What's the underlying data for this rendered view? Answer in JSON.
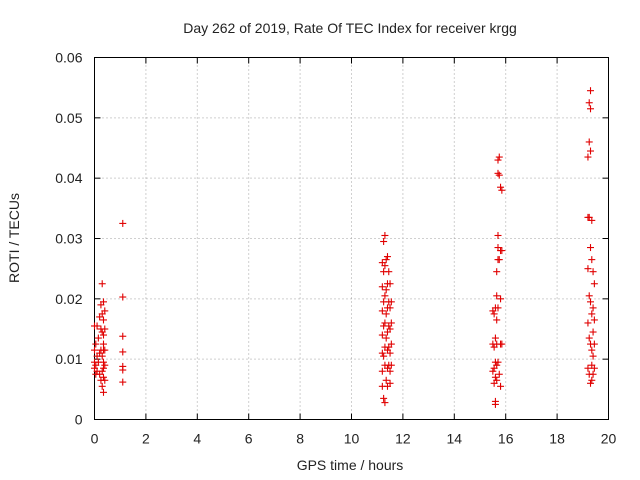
{
  "chart_data": {
    "type": "scatter",
    "title": "Day 262 of 2019, Rate Of TEC Index for receiver krgg",
    "xlabel": "GPS time / hours",
    "ylabel": "ROTI / TECUs",
    "xlim": [
      0,
      20
    ],
    "ylim": [
      0,
      0.06
    ],
    "x_ticks": [
      "0",
      "2",
      "4",
      "6",
      "8",
      "10",
      "12",
      "14",
      "16",
      "18",
      "20"
    ],
    "y_ticks": [
      "0",
      "0.01",
      "0.02",
      "0.03",
      "0.04",
      "0.05",
      "0.06"
    ],
    "grid": true,
    "marker": "+",
    "marker_color": "#e00000",
    "series": [
      {
        "name": "ROTI",
        "x": [
          0.0,
          0.0,
          0.0,
          0.0,
          0.05,
          0.05,
          0.05,
          0.1,
          0.1,
          0.1,
          0.15,
          0.15,
          0.2,
          0.2,
          0.2,
          0.25,
          0.25,
          0.25,
          0.25,
          0.3,
          0.3,
          0.3,
          0.3,
          0.3,
          0.3,
          0.35,
          0.35,
          0.35,
          0.35,
          0.35,
          0.35,
          0.35,
          0.35,
          0.35,
          0.4,
          0.4,
          0.4,
          0.4,
          0.4,
          1.1,
          1.1,
          1.1,
          1.1,
          1.1,
          1.1,
          1.1,
          11.2,
          11.2,
          11.2,
          11.2,
          11.2,
          11.2,
          11.2,
          11.25,
          11.25,
          11.25,
          11.25,
          11.25,
          11.25,
          11.3,
          11.3,
          11.3,
          11.3,
          11.3,
          11.3,
          11.3,
          11.35,
          11.35,
          11.35,
          11.35,
          11.35,
          11.4,
          11.4,
          11.4,
          11.4,
          11.4,
          11.4,
          11.4,
          11.45,
          11.45,
          11.45,
          11.45,
          11.45,
          11.5,
          11.5,
          11.5,
          11.5,
          11.5,
          11.5,
          11.55,
          11.55,
          11.55,
          11.55,
          15.5,
          15.5,
          15.5,
          15.55,
          15.55,
          15.55,
          15.55,
          15.6,
          15.6,
          15.6,
          15.6,
          15.6,
          15.6,
          15.65,
          15.65,
          15.65,
          15.65,
          15.65,
          15.65,
          15.7,
          15.7,
          15.7,
          15.7,
          15.7,
          15.7,
          15.7,
          15.75,
          15.75,
          15.75,
          15.75,
          15.8,
          15.8,
          15.8,
          15.8,
          15.8,
          15.85,
          15.85,
          15.85,
          19.2,
          19.2,
          19.2,
          19.2,
          19.2,
          19.25,
          19.25,
          19.25,
          19.25,
          19.25,
          19.25,
          19.3,
          19.3,
          19.3,
          19.3,
          19.3,
          19.3,
          19.3,
          19.35,
          19.35,
          19.35,
          19.35,
          19.35,
          19.35,
          19.4,
          19.4,
          19.4,
          19.4,
          19.4,
          19.45,
          19.45,
          19.45,
          19.45
        ],
        "y": [
          0.0155,
          0.0115,
          0.0095,
          0.0085,
          0.0125,
          0.009,
          0.0075,
          0.0155,
          0.0105,
          0.008,
          0.0135,
          0.0095,
          0.017,
          0.011,
          0.0075,
          0.019,
          0.015,
          0.0115,
          0.0065,
          0.0225,
          0.0175,
          0.0145,
          0.0105,
          0.008,
          0.0055,
          0.0195,
          0.0165,
          0.014,
          0.0125,
          0.0115,
          0.0095,
          0.0085,
          0.007,
          0.0045,
          0.018,
          0.015,
          0.0115,
          0.009,
          0.0065,
          0.0325,
          0.0203,
          0.0138,
          0.0112,
          0.0088,
          0.0082,
          0.0062,
          0.026,
          0.022,
          0.018,
          0.014,
          0.011,
          0.008,
          0.0055,
          0.0295,
          0.0245,
          0.0195,
          0.0155,
          0.0105,
          0.0035,
          0.0305,
          0.0255,
          0.0205,
          0.016,
          0.012,
          0.009,
          0.0028,
          0.0265,
          0.0215,
          0.0175,
          0.0135,
          0.0065,
          0.027,
          0.0225,
          0.0185,
          0.0145,
          0.0115,
          0.0085,
          0.0055,
          0.0245,
          0.0195,
          0.0155,
          0.012,
          0.009,
          0.0225,
          0.0185,
          0.015,
          0.011,
          0.008,
          0.006,
          0.0195,
          0.016,
          0.0125,
          0.009,
          0.018,
          0.0125,
          0.008,
          0.0175,
          0.012,
          0.0085,
          0.006,
          0.0185,
          0.0135,
          0.0095,
          0.007,
          0.003,
          0.0025,
          0.0245,
          0.0205,
          0.0165,
          0.0125,
          0.009,
          0.0065,
          0.043,
          0.0408,
          0.0305,
          0.0285,
          0.0265,
          0.0185,
          0.0095,
          0.0435,
          0.0405,
          0.0265,
          0.0075,
          0.0385,
          0.028,
          0.02,
          0.0125,
          0.0055,
          0.038,
          0.028,
          0.0125,
          0.0435,
          0.0335,
          0.025,
          0.016,
          0.0085,
          0.0525,
          0.046,
          0.0335,
          0.0205,
          0.0135,
          0.0075,
          0.0545,
          0.0515,
          0.0445,
          0.0285,
          0.0195,
          0.0125,
          0.006,
          0.033,
          0.0265,
          0.0175,
          0.0115,
          0.009,
          0.0065,
          0.0245,
          0.0185,
          0.0145,
          0.0105,
          0.0075,
          0.0225,
          0.0165,
          0.0125,
          0.0085
        ]
      }
    ]
  }
}
